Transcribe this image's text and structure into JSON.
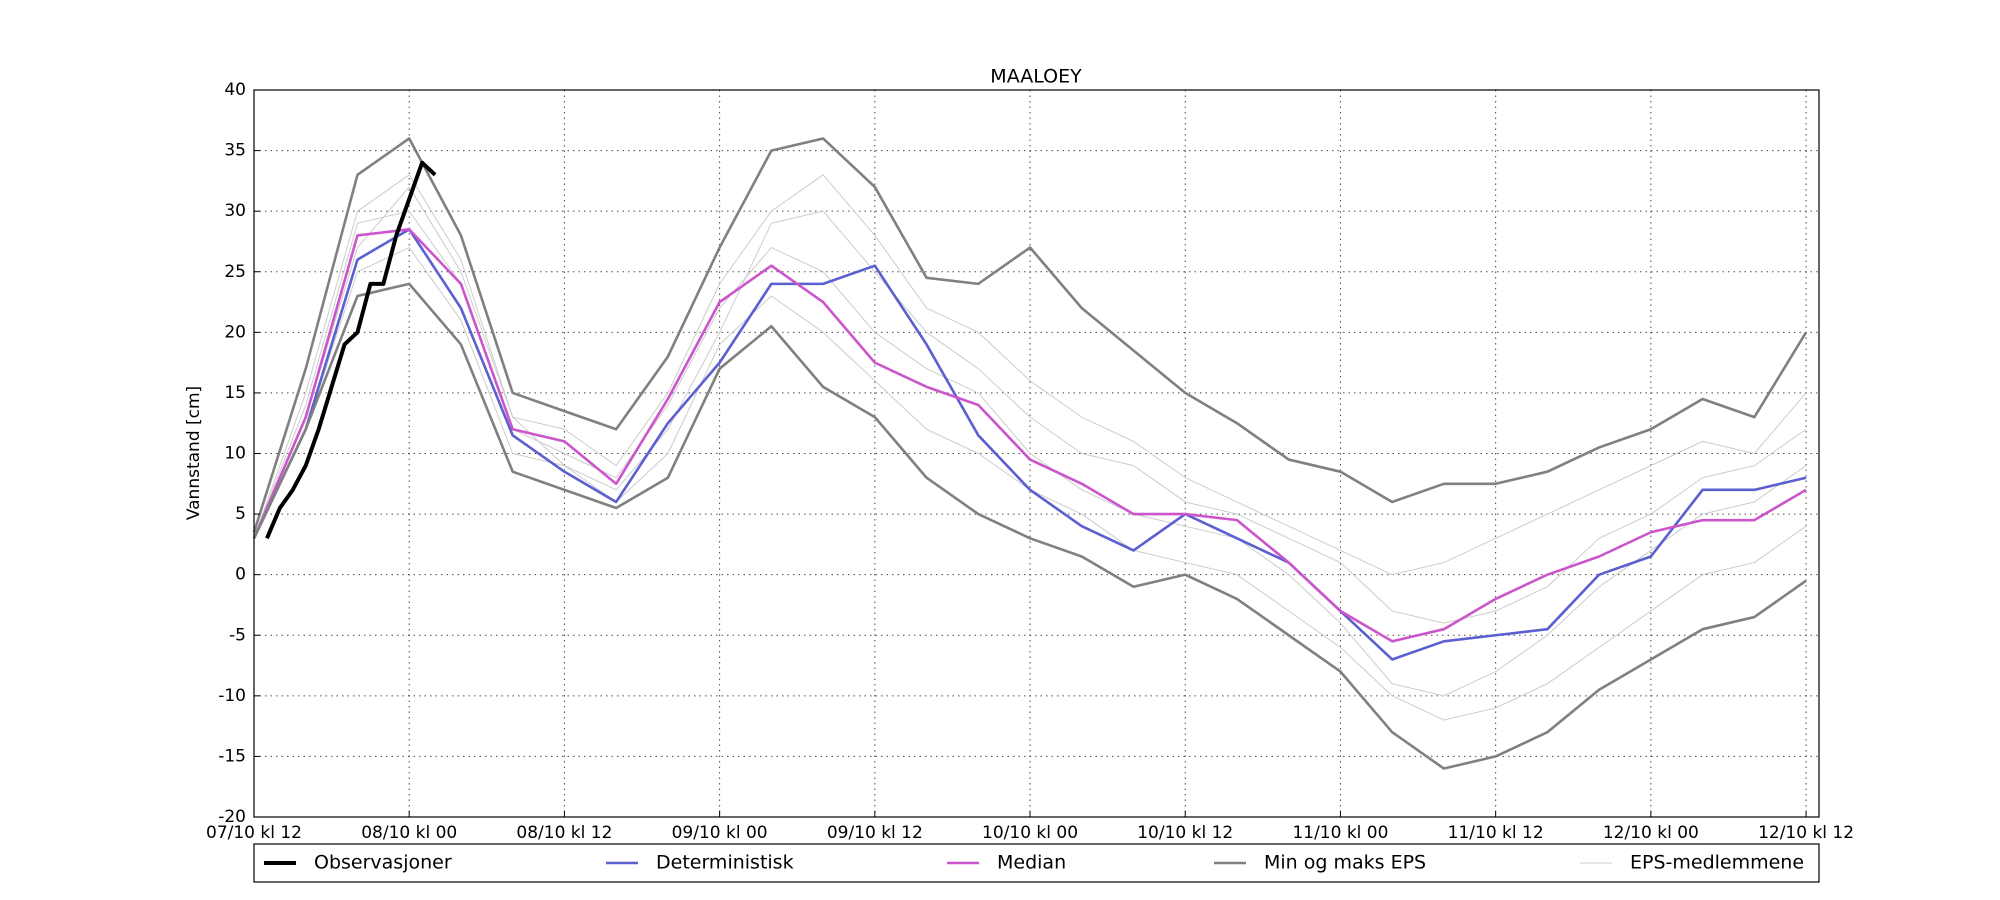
{
  "chart_data": {
    "type": "line",
    "title": "MAALOEY",
    "y_label": "Vannstand [cm]",
    "x": [
      0,
      4,
      8,
      12,
      16,
      20,
      24,
      28,
      32,
      36,
      40,
      44,
      48,
      52,
      56,
      60,
      64,
      68,
      72,
      76,
      80,
      84,
      88,
      92,
      96,
      100,
      104,
      108,
      112,
      116,
      120
    ],
    "xlim": [
      0,
      121
    ],
    "xticks": [
      {
        "value": 0,
        "label": "07/10 kl 12"
      },
      {
        "value": 12,
        "label": "08/10 kl 00"
      },
      {
        "value": 24,
        "label": "08/10 kl 12"
      },
      {
        "value": 36,
        "label": "09/10 kl 00"
      },
      {
        "value": 48,
        "label": "09/10 kl 12"
      },
      {
        "value": 60,
        "label": "10/10 kl 00"
      },
      {
        "value": 72,
        "label": "10/10 kl 12"
      },
      {
        "value": 84,
        "label": "11/10 kl 00"
      },
      {
        "value": 96,
        "label": "11/10 kl 12"
      },
      {
        "value": 108,
        "label": "12/10 kl 00"
      },
      {
        "value": 120,
        "label": "12/10 kl 12"
      }
    ],
    "ylim": [
      -20,
      40
    ],
    "yticks": [
      -20,
      -15,
      -10,
      -5,
      0,
      5,
      10,
      15,
      20,
      25,
      30,
      35,
      40
    ],
    "grid": true,
    "legend": "bottom",
    "series": [
      {
        "name": "Observasjoner",
        "color": "#000000",
        "x": [
          1,
          2,
          3,
          4,
          5,
          6,
          7,
          8,
          9,
          10,
          11,
          12,
          13,
          14
        ],
        "values": [
          3,
          5.5,
          7,
          9,
          12,
          15.5,
          19,
          20,
          24,
          24,
          28,
          31,
          34,
          33
        ]
      },
      {
        "name": "Deterministisk",
        "color": "#5b5fd0",
        "values": [
          3,
          12,
          26,
          28.5,
          22,
          11.5,
          8.5,
          6,
          12.5,
          17.5,
          24,
          24,
          25.5,
          19,
          11.5,
          7,
          4,
          2,
          5,
          3,
          1,
          -3,
          -7,
          -5.5,
          -5,
          -4.5,
          0,
          1.5,
          7,
          7,
          8
        ]
      },
      {
        "name": "Median",
        "color": "#cc55cc",
        "values": [
          3,
          13,
          28,
          28.5,
          24,
          12,
          11,
          7.5,
          14.5,
          22.5,
          25.5,
          22.5,
          17.5,
          15.5,
          14,
          9.5,
          7.5,
          5,
          5,
          4.5,
          1,
          -3,
          -5.5,
          -4.5,
          -2,
          0,
          1.5,
          3.5,
          4.5,
          4.5,
          7
        ]
      },
      {
        "name": "Min og maks EPS",
        "color": "#808080",
        "values": [
          3.5,
          17,
          33,
          36,
          28,
          15,
          13.5,
          12,
          18,
          27,
          35,
          36,
          32,
          24.5,
          24,
          27,
          22,
          18.5,
          15,
          12.5,
          9.5,
          8.5,
          6,
          7.5,
          7.5,
          8.5,
          10.5,
          12,
          14.5,
          13,
          20
        ],
        "min_values": [
          3,
          12,
          23,
          24,
          19,
          8.5,
          7,
          5.5,
          8,
          17,
          20.5,
          15.5,
          13,
          8,
          5,
          3,
          1.5,
          -1,
          0,
          -2,
          -5,
          -8,
          -13,
          -16,
          -15,
          -13,
          -9.5,
          -7,
          -4.5,
          -3.5,
          -0.5
        ]
      },
      {
        "name": "EPS-medlemmene",
        "color": "#cccccc",
        "members": [
          [
            3,
            14,
            29,
            30,
            24,
            12,
            10,
            8,
            14,
            22,
            27,
            25,
            20,
            17,
            15,
            10,
            7,
            5,
            4,
            3,
            0,
            -4,
            -9,
            -10,
            -8,
            -5,
            -1,
            2,
            5,
            6,
            9
          ],
          [
            3,
            13,
            27,
            32,
            25,
            13,
            9,
            7,
            12,
            20,
            29,
            30,
            25,
            20,
            17,
            13,
            10,
            9,
            6,
            5,
            3,
            1,
            -3,
            -4,
            -3,
            -1,
            3,
            5,
            8,
            9,
            12
          ],
          [
            3,
            12,
            25,
            27,
            21,
            10,
            9,
            6,
            10,
            19,
            23,
            20,
            16,
            12,
            10,
            7,
            5,
            2,
            1,
            0,
            -3,
            -6,
            -10,
            -12,
            -11,
            -9,
            -6,
            -3,
            0,
            1,
            4
          ],
          [
            3,
            15,
            30,
            33,
            26,
            13,
            12,
            9,
            15,
            24,
            30,
            33,
            28,
            22,
            20,
            16,
            13,
            11,
            8,
            6,
            4,
            2,
            0,
            1,
            3,
            5,
            7,
            9,
            11,
            10,
            15
          ]
        ]
      }
    ]
  }
}
